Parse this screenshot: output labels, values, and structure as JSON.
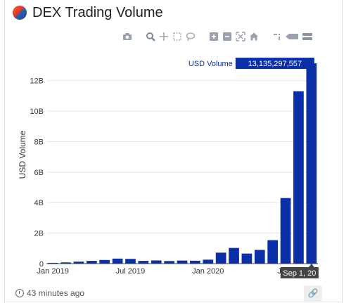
{
  "header": {
    "title": "DEX Trading Volume"
  },
  "modebar": {
    "icons": [
      "camera-icon",
      "zoom-icon",
      "pan-icon",
      "box-select-icon",
      "lasso-icon",
      "zoom-in-icon",
      "zoom-out-icon",
      "autoscale-icon",
      "reset-axes-icon",
      "spike-lines-icon",
      "hover-closest-icon",
      "hover-compare-icon"
    ]
  },
  "footer": {
    "updated": "43 minutes ago"
  },
  "chart_data": {
    "type": "bar",
    "ylabel": "USD Volume",
    "xlabel": "",
    "ylim": [
      0,
      13600000000
    ],
    "yticks": [
      0,
      2000000000,
      4000000000,
      6000000000,
      8000000000,
      10000000000,
      12000000000
    ],
    "ytick_labels": [
      "0",
      "2B",
      "4B",
      "6B",
      "8B",
      "10B",
      "12B"
    ],
    "xtick_labels": [
      "Jan 2019",
      "Jul 2019",
      "Jan 2020",
      "Jul 2"
    ],
    "xtick_index": [
      0,
      6,
      12,
      18
    ],
    "series": [
      {
        "name": "USD Volume",
        "color": "#0a2fa8",
        "x": [
          "2019-01",
          "2019-02",
          "2019-03",
          "2019-04",
          "2019-05",
          "2019-06",
          "2019-07",
          "2019-08",
          "2019-09",
          "2019-10",
          "2019-11",
          "2019-12",
          "2020-01",
          "2020-02",
          "2020-03",
          "2020-04",
          "2020-05",
          "2020-06",
          "2020-07",
          "2020-08",
          "2020-09"
        ],
        "values": [
          50000000,
          80000000,
          130000000,
          180000000,
          240000000,
          330000000,
          310000000,
          180000000,
          210000000,
          170000000,
          200000000,
          190000000,
          260000000,
          720000000,
          1030000000,
          660000000,
          900000000,
          1540000000,
          4300000000,
          11300000000,
          13135297557
        ]
      }
    ],
    "hover": {
      "series_name": "USD Volume",
      "value_text": "13,135,297,557",
      "x_text": "Sep 1, 20"
    }
  }
}
